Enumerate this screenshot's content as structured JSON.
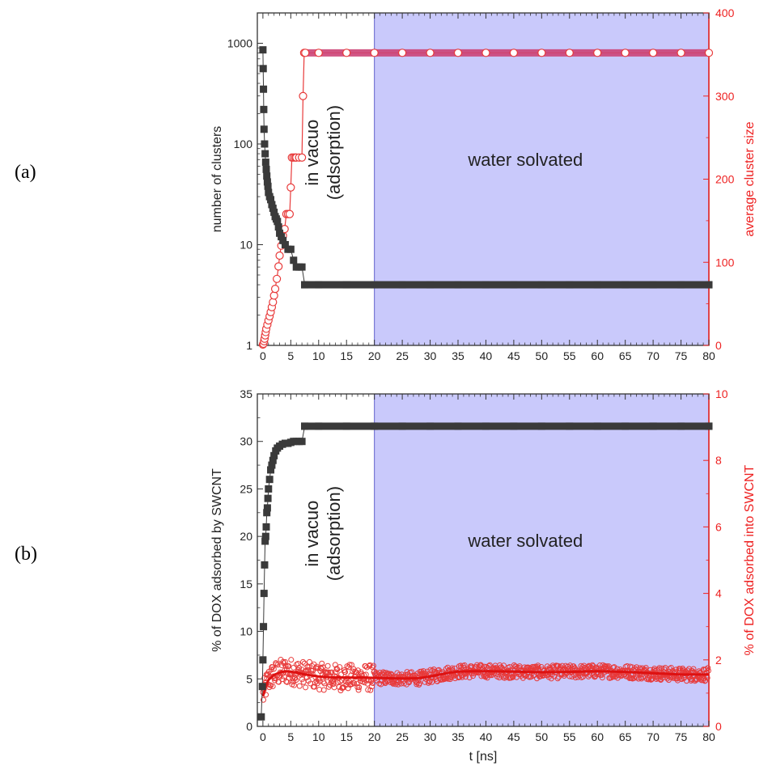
{
  "figure": {
    "panel_a_label": "(a)",
    "panel_b_label": "(b)",
    "colors": {
      "left_series": "#3a3a3a",
      "right_series": "#e83a3a",
      "right_axis": "#ee2222",
      "shade": "#c9c9fb",
      "shade_border": "#6060cc"
    }
  },
  "chart_data": [
    {
      "type": "scatter",
      "panel": "(a)",
      "xlabel": "",
      "xlim": [
        -1,
        80
      ],
      "xticks": [
        0,
        5,
        10,
        15,
        20,
        25,
        30,
        35,
        40,
        45,
        50,
        55,
        60,
        65,
        70,
        75,
        80
      ],
      "ylabel_left": "number of clusters",
      "yscale_left": "log",
      "ylim_left": [
        1,
        2000
      ],
      "yticks_left": [
        "1",
        "10",
        "100",
        "1000"
      ],
      "ylabel_right": "average cluster size",
      "ylim_right": [
        0,
        400
      ],
      "yticks_right": [
        0,
        100,
        200,
        300,
        400
      ],
      "shaded_region": {
        "x_from": 20,
        "x_to": 80,
        "label": "water solvated"
      },
      "region_annotation": {
        "line1": "in vacuo",
        "line2": "(adsorption)"
      },
      "series": [
        {
          "name": "number of clusters",
          "axis": "left",
          "marker": "filled-square",
          "x": [
            0,
            0.05,
            0.1,
            0.15,
            0.2,
            0.3,
            0.4,
            0.5,
            0.6,
            0.7,
            0.8,
            0.9,
            1.0,
            1.2,
            1.4,
            1.6,
            1.8,
            2.0,
            2.2,
            2.4,
            2.6,
            2.8,
            3.0,
            3.3,
            3.6,
            4.0,
            4.5,
            5.0,
            5.5,
            6.0,
            6.5,
            7.0,
            7.5,
            10,
            15,
            20,
            25,
            30,
            35,
            40,
            45,
            50,
            55,
            60,
            65,
            70,
            75,
            80
          ],
          "values": [
            860,
            560,
            350,
            220,
            140,
            100,
            80,
            66,
            56,
            48,
            42,
            38,
            33,
            30,
            28,
            25,
            23,
            21,
            19,
            18,
            17,
            15,
            13,
            12,
            11,
            10,
            9,
            9,
            7,
            6,
            6,
            6,
            4,
            4,
            4,
            4,
            4,
            4,
            4,
            4,
            4,
            4,
            4,
            4,
            4,
            4,
            4,
            4
          ]
        },
        {
          "name": "average cluster size",
          "axis": "right",
          "marker": "open-circle",
          "x": [
            0,
            0.1,
            0.2,
            0.3,
            0.4,
            0.5,
            0.6,
            0.8,
            1.0,
            1.2,
            1.4,
            1.6,
            1.8,
            2.0,
            2.2,
            2.5,
            2.8,
            3.0,
            3.3,
            3.6,
            3.9,
            4.2,
            4.5,
            4.8,
            5.0,
            5.2,
            5.5,
            5.8,
            6.0,
            6.5,
            7.0,
            7.2,
            7.4,
            7.6,
            10,
            15,
            20,
            25,
            30,
            35,
            40,
            45,
            50,
            55,
            60,
            65,
            70,
            75,
            80
          ],
          "values": [
            1,
            2,
            5,
            8,
            12,
            16,
            20,
            25,
            30,
            35,
            40,
            46,
            52,
            60,
            68,
            80,
            95,
            108,
            120,
            132,
            140,
            158,
            158,
            158,
            190,
            226,
            226,
            226,
            226,
            226,
            226,
            300,
            352,
            352,
            352,
            352,
            352,
            352,
            352,
            352,
            352,
            352,
            352,
            352,
            352,
            352,
            352,
            352,
            352
          ]
        }
      ]
    },
    {
      "type": "scatter",
      "panel": "(b)",
      "xlabel": "t [ns]",
      "xlim": [
        -1,
        80
      ],
      "xticks": [
        0,
        5,
        10,
        15,
        20,
        25,
        30,
        35,
        40,
        45,
        50,
        55,
        60,
        65,
        70,
        75,
        80
      ],
      "ylabel_left": "% of DOX adsorbed by SWCNT",
      "ylim_left": [
        0,
        35
      ],
      "yticks_left": [
        0,
        5,
        10,
        15,
        20,
        25,
        30,
        35
      ],
      "ylabel_right": "% of DOX adsorbed into SWCNT",
      "ylim_right": [
        0,
        10
      ],
      "yticks_right": [
        0,
        2,
        4,
        6,
        8,
        10
      ],
      "shaded_region": {
        "x_from": 20,
        "x_to": 80,
        "label": "water solvated"
      },
      "region_annotation": {
        "line1": "in vacuo",
        "line2": "(adsorption)"
      },
      "series": [
        {
          "name": "% of DOX adsorbed by SWCNT",
          "axis": "left",
          "marker": "filled-square",
          "x": [
            -0.3,
            -0.1,
            0,
            0.1,
            0.2,
            0.3,
            0.4,
            0.5,
            0.6,
            0.7,
            0.8,
            0.9,
            1.0,
            1.2,
            1.4,
            1.6,
            1.8,
            2.0,
            2.3,
            2.6,
            3.0,
            3.5,
            4.0,
            4.5,
            5.0,
            5.5,
            6.0,
            6.5,
            7.0,
            7.5,
            10,
            15,
            20,
            25,
            30,
            35,
            40,
            45,
            50,
            55,
            60,
            65,
            70,
            75,
            80
          ],
          "values": [
            1.0,
            4.2,
            7.0,
            10.5,
            14.0,
            17.0,
            19.5,
            20.0,
            21.0,
            22.5,
            23.0,
            24.0,
            25.0,
            26.0,
            27.0,
            27.5,
            28.0,
            28.5,
            29.0,
            29.3,
            29.5,
            29.7,
            29.8,
            29.8,
            29.9,
            30.0,
            30.0,
            30.0,
            30.0,
            31.6,
            31.6,
            31.6,
            31.6,
            31.6,
            31.6,
            31.6,
            31.6,
            31.6,
            31.6,
            31.6,
            31.6,
            31.6,
            31.6,
            31.6,
            31.6
          ]
        },
        {
          "name": "% of DOX adsorbed into SWCNT",
          "axis": "right",
          "marker": "open-circle",
          "mean_curve": {
            "x": [
              0,
              0.5,
              1,
              2,
              3,
              4,
              5,
              6,
              7,
              8,
              10,
              12,
              15,
              18,
              20,
              22,
              25,
              28,
              30,
              33,
              35,
              38,
              40,
              45,
              50,
              55,
              60,
              65,
              70,
              75,
              80
            ],
            "values": [
              0.9,
              1.2,
              1.4,
              1.55,
              1.62,
              1.66,
              1.65,
              1.62,
              1.58,
              1.55,
              1.5,
              1.48,
              1.47,
              1.47,
              1.46,
              1.45,
              1.44,
              1.45,
              1.5,
              1.6,
              1.65,
              1.66,
              1.66,
              1.65,
              1.63,
              1.64,
              1.66,
              1.64,
              1.6,
              1.56,
              1.56
            ]
          },
          "scatter_spread": 0.2,
          "scatter_points": 900
        }
      ]
    }
  ]
}
